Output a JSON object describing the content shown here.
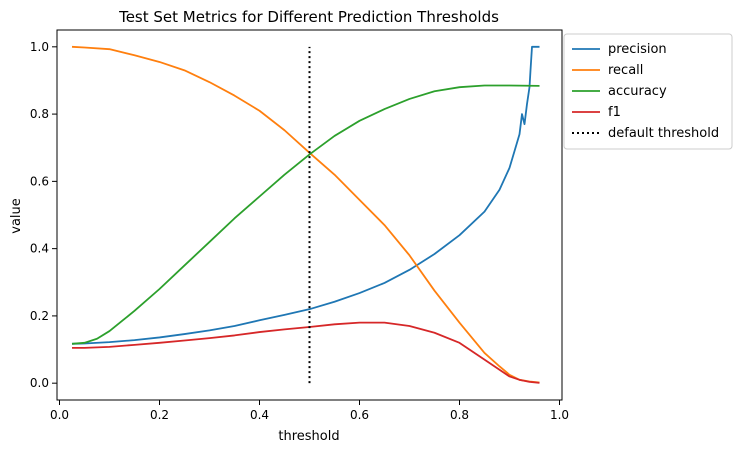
{
  "chart_data": {
    "type": "line",
    "title": "Test Set Metrics for Different Prediction Thresholds",
    "xlabel": "threshold",
    "ylabel": "value",
    "xlim": [
      -0.005,
      1.005
    ],
    "ylim": [
      -0.05,
      1.05
    ],
    "xticks": [
      0.0,
      0.2,
      0.4,
      0.6,
      0.8,
      1.0
    ],
    "xtick_labels": [
      "0.0",
      "0.2",
      "0.4",
      "0.6",
      "0.8",
      "1.0"
    ],
    "yticks": [
      0.0,
      0.2,
      0.4,
      0.6,
      0.8,
      1.0
    ],
    "ytick_labels": [
      "0.0",
      "0.2",
      "0.4",
      "0.6",
      "0.8",
      "1.0"
    ],
    "grid": false,
    "legend_position": "outside-top-right",
    "series": [
      {
        "name": "precision",
        "color": "#1f77b4",
        "style": "solid",
        "x": [
          0.025,
          0.05,
          0.1,
          0.15,
          0.2,
          0.25,
          0.3,
          0.35,
          0.4,
          0.45,
          0.5,
          0.55,
          0.6,
          0.65,
          0.7,
          0.75,
          0.8,
          0.85,
          0.88,
          0.9,
          0.91,
          0.92,
          0.925,
          0.93,
          0.935,
          0.94,
          0.942,
          0.945,
          0.95,
          0.96
        ],
        "y": [
          0.117,
          0.118,
          0.122,
          0.128,
          0.136,
          0.146,
          0.157,
          0.17,
          0.187,
          0.203,
          0.22,
          0.242,
          0.268,
          0.298,
          0.337,
          0.384,
          0.44,
          0.51,
          0.575,
          0.64,
          0.69,
          0.74,
          0.8,
          0.77,
          0.83,
          0.88,
          0.93,
          1.0,
          1.0,
          1.0
        ]
      },
      {
        "name": "recall",
        "color": "#ff7f0e",
        "style": "solid",
        "x": [
          0.025,
          0.05,
          0.1,
          0.15,
          0.2,
          0.25,
          0.3,
          0.35,
          0.4,
          0.45,
          0.5,
          0.55,
          0.6,
          0.65,
          0.7,
          0.75,
          0.8,
          0.85,
          0.88,
          0.9,
          0.92,
          0.94,
          0.96
        ],
        "y": [
          1.0,
          0.998,
          0.993,
          0.975,
          0.955,
          0.93,
          0.895,
          0.855,
          0.81,
          0.752,
          0.685,
          0.62,
          0.545,
          0.47,
          0.38,
          0.275,
          0.18,
          0.09,
          0.05,
          0.025,
          0.01,
          0.005,
          0.002
        ]
      },
      {
        "name": "accuracy",
        "color": "#2ca02c",
        "style": "solid",
        "x": [
          0.025,
          0.05,
          0.075,
          0.1,
          0.125,
          0.15,
          0.2,
          0.25,
          0.3,
          0.35,
          0.4,
          0.45,
          0.5,
          0.55,
          0.6,
          0.65,
          0.7,
          0.75,
          0.8,
          0.85,
          0.9,
          0.96
        ],
        "y": [
          0.117,
          0.12,
          0.132,
          0.155,
          0.185,
          0.215,
          0.28,
          0.35,
          0.42,
          0.49,
          0.555,
          0.62,
          0.68,
          0.735,
          0.78,
          0.815,
          0.845,
          0.868,
          0.88,
          0.885,
          0.885,
          0.884
        ]
      },
      {
        "name": "f1",
        "color": "#d62728",
        "style": "solid",
        "x": [
          0.025,
          0.05,
          0.1,
          0.15,
          0.2,
          0.25,
          0.3,
          0.35,
          0.4,
          0.45,
          0.5,
          0.55,
          0.6,
          0.65,
          0.7,
          0.75,
          0.8,
          0.85,
          0.88,
          0.9,
          0.92,
          0.94,
          0.96
        ],
        "y": [
          0.105,
          0.105,
          0.108,
          0.114,
          0.12,
          0.127,
          0.134,
          0.142,
          0.152,
          0.16,
          0.167,
          0.175,
          0.18,
          0.18,
          0.17,
          0.15,
          0.12,
          0.07,
          0.04,
          0.02,
          0.01,
          0.004,
          0.001
        ]
      },
      {
        "name": "default threshold",
        "color": "#000000",
        "style": "dotted",
        "x": [
          0.5,
          0.5
        ],
        "y": [
          0.0,
          1.0
        ]
      }
    ]
  }
}
